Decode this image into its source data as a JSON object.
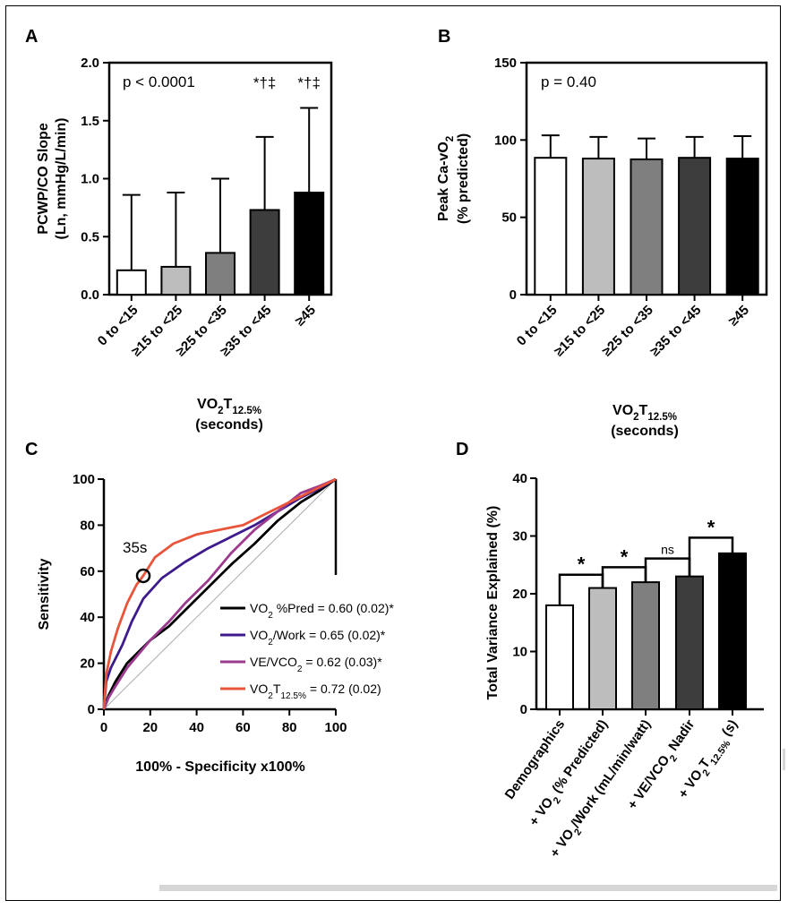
{
  "chart_data": [
    {
      "panel": "A",
      "type": "bar",
      "categories": [
        "0 to <15",
        "≥15 to <25",
        "≥25 to <35",
        "≥35 to <45",
        "≥45"
      ],
      "values": [
        0.21,
        0.24,
        0.36,
        0.73,
        0.88
      ],
      "error_upper": [
        0.86,
        0.88,
        1.0,
        1.36,
        1.61
      ],
      "bar_colors": [
        "#ffffff",
        "#bdbdbd",
        "#7f7f7f",
        "#3d3d3d",
        "#000000"
      ],
      "ylim": [
        0,
        2.0
      ],
      "yticks": [
        "0.0",
        "0.5",
        "1.0",
        "1.5",
        "2.0"
      ],
      "ylabel_line1": "PCWP/CO Slope",
      "ylabel_line2": "(Ln, mmHg/L/min)",
      "xlabel_line1": "VO2T12.5%",
      "xlabel_line2": "(seconds)",
      "annotation": "p < 0.0001",
      "bar_marks": [
        "",
        "",
        "",
        "*†‡",
        "*†‡"
      ]
    },
    {
      "panel": "B",
      "type": "bar",
      "categories": [
        "0 to <15",
        "≥15 to <25",
        "≥25 to <35",
        "≥35 to <45",
        "≥45"
      ],
      "values": [
        88.5,
        88.0,
        87.5,
        88.5,
        88.0
      ],
      "error_upper": [
        103,
        102,
        101,
        102,
        102.5
      ],
      "bar_colors": [
        "#ffffff",
        "#bdbdbd",
        "#7f7f7f",
        "#3d3d3d",
        "#000000"
      ],
      "ylim": [
        0,
        150
      ],
      "yticks": [
        "0",
        "50",
        "100",
        "150"
      ],
      "ylabel_line1": "Peak Ca-vO2",
      "ylabel_line2": "(% predicted)",
      "xlabel_line1": "VO2T12.5%",
      "xlabel_line2": "(seconds)",
      "annotation": "p = 0.40"
    },
    {
      "panel": "C",
      "type": "line",
      "xlabel": "100% - Specificity x100%",
      "ylabel": "Sensitivity",
      "xlim": [
        0,
        100
      ],
      "ylim": [
        0,
        100
      ],
      "ticks": [
        "0",
        "20",
        "40",
        "60",
        "80",
        "100"
      ],
      "annotation": "35s",
      "annotation_point": [
        17,
        58
      ],
      "series": [
        {
          "name": "VO2 %Pred = 0.60 (0.02)*",
          "color": "#000000",
          "x": [
            0,
            2,
            5,
            10,
            15,
            20,
            28,
            35,
            45,
            55,
            65,
            75,
            85,
            93,
            100
          ],
          "y": [
            0,
            6,
            12,
            20,
            25,
            30,
            36,
            43,
            53,
            63,
            72,
            82,
            90,
            95,
            100
          ]
        },
        {
          "name": "VO2/Work = 0.65 (0.02)*",
          "color": "#3e1a8c",
          "x": [
            0,
            1,
            3,
            8,
            12,
            17,
            25,
            35,
            45,
            55,
            65,
            75,
            85,
            93,
            100
          ],
          "y": [
            0,
            12,
            18,
            28,
            38,
            48,
            57,
            64,
            70,
            75,
            80,
            86,
            92,
            96,
            100
          ]
        },
        {
          "name": "VE/VCO2 = 0.62 (0.03)*",
          "color": "#9b3a8e",
          "x": [
            0,
            2,
            5,
            10,
            15,
            20,
            28,
            35,
            45,
            55,
            65,
            75,
            85,
            93,
            100
          ],
          "y": [
            0,
            5,
            10,
            18,
            24,
            30,
            38,
            46,
            56,
            68,
            78,
            86,
            94,
            97,
            100
          ]
        },
        {
          "name": "VO2T12.5% = 0.72 (0.02)",
          "color": "#e8553a",
          "x": [
            0,
            1,
            3,
            6,
            10,
            14,
            17,
            22,
            30,
            40,
            50,
            60,
            70,
            80,
            90,
            100
          ],
          "y": [
            0,
            15,
            25,
            35,
            46,
            54,
            58,
            66,
            72,
            76,
            78,
            80,
            85,
            90,
            95,
            100
          ]
        }
      ],
      "reference_line": {
        "x": [
          0,
          100
        ],
        "y": [
          0,
          100
        ],
        "color": "#aaaaaa"
      }
    },
    {
      "panel": "D",
      "type": "bar",
      "categories": [
        "Demographics",
        "+ VO2 (% Predicted)",
        "+ VO2/Work (mL/min/watt)",
        "+ VE/VCO2 Nadir",
        "+ VO2T12.5% (s)"
      ],
      "values": [
        18,
        21,
        22,
        23,
        27
      ],
      "bar_colors": [
        "#ffffff",
        "#bdbdbd",
        "#7f7f7f",
        "#3d3d3d",
        "#000000"
      ],
      "ylim": [
        0,
        40
      ],
      "yticks": [
        "0",
        "10",
        "20",
        "30",
        "40"
      ],
      "ylabel": "Total Variance Explained (%)",
      "brackets": [
        {
          "from": 0,
          "to": 1,
          "level": 23.3,
          "label": "*"
        },
        {
          "from": 1,
          "to": 2,
          "level": 24.6,
          "label": "*"
        },
        {
          "from": 2,
          "to": 3,
          "level": 26.1,
          "label": "ns"
        },
        {
          "from": 3,
          "to": 4,
          "level": 29.7,
          "label": "*"
        }
      ]
    }
  ]
}
